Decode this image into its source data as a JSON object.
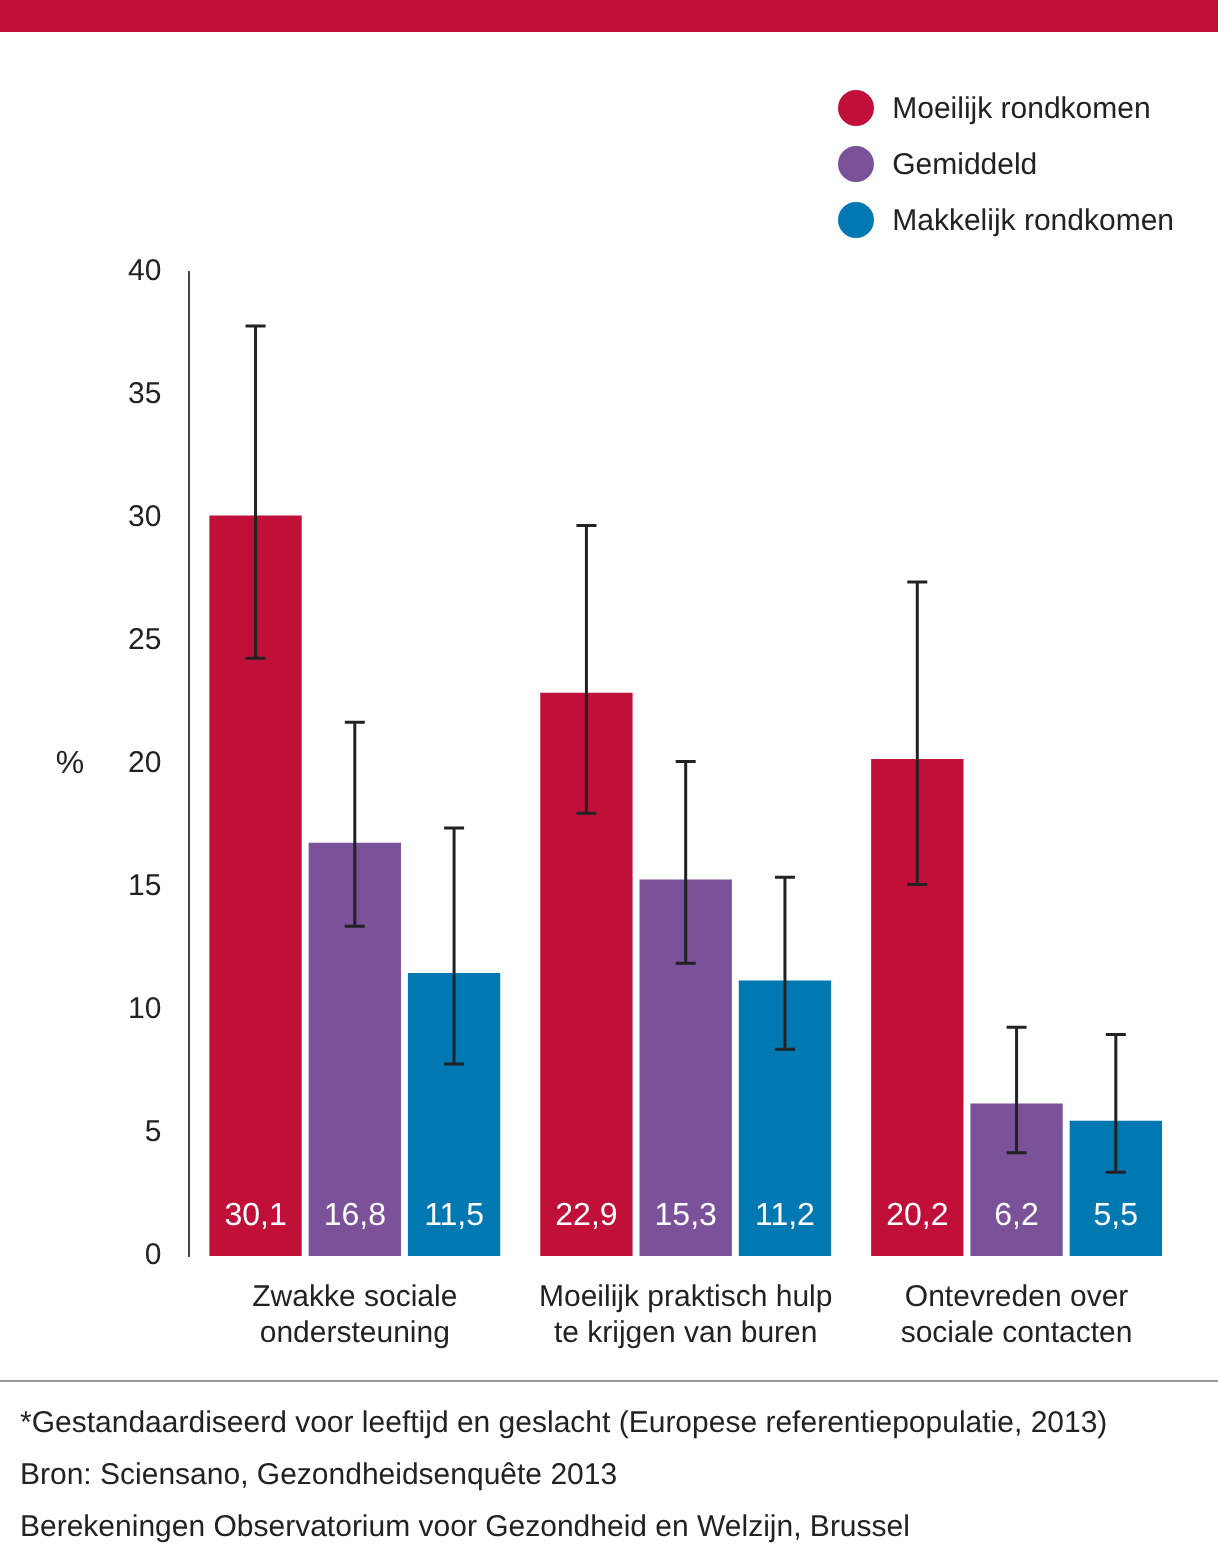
{
  "chart_data": {
    "type": "bar",
    "ylabel": "%",
    "categories": [
      "Zwakke sociale ondersteuning",
      "Moeilijk praktisch hulp te krijgen van buren",
      "Ontevreden over sociale contacten"
    ],
    "series": [
      {
        "name": "Moeilijk rondkomen",
        "color": "#c0103a",
        "values": [
          30.1,
          22.9,
          20.2
        ],
        "errors": [
          [
            24.3,
            37.8
          ],
          [
            18.0,
            29.7
          ],
          [
            15.1,
            27.4
          ]
        ],
        "value_labels": [
          "30,1",
          "22,9",
          "20,2"
        ]
      },
      {
        "name": "Gemiddeld",
        "color": "#7b5199",
        "values": [
          16.8,
          15.3,
          6.2
        ],
        "errors": [
          [
            13.4,
            21.7
          ],
          [
            11.9,
            20.1
          ],
          [
            4.2,
            9.3
          ]
        ],
        "value_labels": [
          "16,8",
          "15,3",
          "6,2"
        ]
      },
      {
        "name": "Makkelijk rondkomen",
        "color": "#0079b2",
        "values": [
          11.5,
          11.2,
          5.5
        ],
        "errors": [
          [
            7.8,
            17.4
          ],
          [
            8.4,
            15.4
          ],
          [
            3.4,
            9.0
          ]
        ],
        "value_labels": [
          "11,5",
          "11,2",
          "5,5"
        ]
      }
    ],
    "ylim": [
      0,
      40
    ],
    "yticks": [
      0,
      5,
      10,
      15,
      20,
      25,
      30,
      35,
      40
    ],
    "grid": false,
    "legend": "top right",
    "marker": "circle",
    "annotations": [
      "*Gestandaardiseerd voor leeftijd en geslacht (Europese referentiepopulatie, 2013)",
      "Bron: Sciensano, Gezondheidsenquête 2013",
      "Berekeningen Observatorium voor Gezondheid en Welzijn, Brussel"
    ]
  }
}
